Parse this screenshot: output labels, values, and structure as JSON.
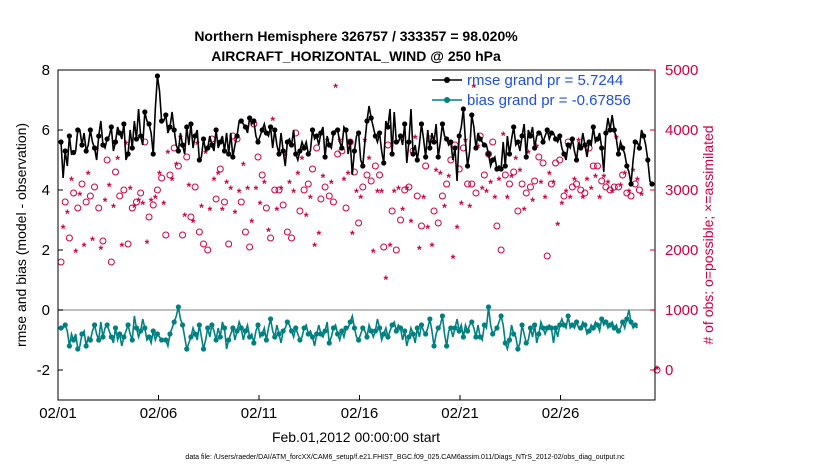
{
  "chart_data": {
    "type": "line",
    "title": "Northern Hemisphere 326757 / 333357 = 98.020%",
    "subtitle": "AIRCRAFT_HORIZONTAL_WIND @ 250 hPa",
    "xlabel": "Feb.01,2012 00:00:00 start",
    "ylabel_left": "rmse and bias (model - observation)",
    "ylabel_right": "# of obs: o=possible; ×=assimilated",
    "footer": "data file: /Users/raeder/DAI/ATM_forcXX/CAM6_setup/f.e21.FHIST_BGC.f09_025.CAM6assim.011/Diags_NTrS_2012-02/obs_diag_output.nc",
    "x_unit": "days since 02/01",
    "xlim": [
      0,
      29.7
    ],
    "x_ticks": [
      0,
      5,
      10,
      15,
      20,
      25
    ],
    "x_ticklabels": [
      "02/01",
      "02/06",
      "02/11",
      "02/16",
      "02/21",
      "02/26"
    ],
    "ylim_left": [
      -3,
      8
    ],
    "yticks_left": [
      -2,
      0,
      2,
      4,
      6,
      8
    ],
    "yticklabels_left": [
      "-2",
      "0",
      "2",
      "4",
      "6",
      "8"
    ],
    "ylim_right": [
      -500,
      5000
    ],
    "yticks_right": [
      0,
      1000,
      2000,
      3000,
      4000,
      5000
    ],
    "yticklabels_right": [
      "0",
      "1000",
      "2000",
      "3000",
      "4000",
      "5000"
    ],
    "legend_position": "top-right",
    "grid": false,
    "series": [
      {
        "name": "rmse grand pr = 5.7244",
        "axis": "left",
        "color": "#000000",
        "marker": "filled-circle",
        "values": [
          5.6,
          4.4,
          5.3,
          4.8,
          5.8,
          5.2,
          5.25,
          5.3,
          6.0,
          6.0,
          5.5,
          5.9,
          5.3,
          5.5,
          6.0,
          5.6,
          5.4,
          5.0,
          5.8,
          6.3,
          5.5,
          5.4,
          5.7,
          5.8,
          6.1,
          5.3,
          5.6,
          6.1,
          5.9,
          5.7,
          6.2,
          5.0,
          5.2,
          6.0,
          5.4,
          6.3,
          5.7,
          6.7,
          5.8,
          5.5,
          6.6,
          6.3,
          6.2,
          5.9,
          5.2,
          6.7,
          7.8,
          7.3,
          6.3,
          6.3,
          6.5,
          5.9,
          6.1,
          6.6,
          6.0,
          5.5,
          5.3,
          5.9,
          5.5,
          5.2,
          6.1,
          5.5,
          6.2,
          5.4,
          5.8,
          6.0,
          5.0,
          5.1,
          5.7,
          5.3,
          5.4,
          5.8,
          5.5,
          5.3,
          6.0,
          5.4,
          5.6,
          5.8,
          5.3,
          5.9,
          5.2,
          5.9,
          5.1,
          5.5,
          5.8,
          6.3,
          6.3,
          6.2,
          6.1,
          5.9,
          6.4,
          6.2,
          6.3,
          5.8,
          5.6,
          5.8,
          6.0,
          6.2,
          5.9,
          5.8,
          6.1,
          5.4,
          6.0,
          5.5,
          5.2,
          5.9,
          5.3,
          4.8,
          5.6,
          5.7,
          5.5,
          6.0,
          5.2,
          5.0,
          5.3,
          5.6,
          5.4,
          5.6,
          5.2,
          5.3,
          6.0,
          5.7,
          5.8,
          5.5,
          5.9,
          6.1,
          5.1,
          5.8,
          5.5,
          5.4,
          5.9,
          6.0,
          6.0,
          5.6,
          5.4,
          6.1,
          6.0,
          5.2,
          5.6,
          4.5,
          5.3,
          5.8,
          5.9,
          5.0,
          4.8,
          5.6,
          6.3,
          6.8,
          6.4,
          6.1,
          5.8,
          5.6,
          5.9,
          5.3,
          4.9,
          6.3,
          6.1,
          6.7,
          5.2,
          6.6,
          5.6,
          5.6,
          5.8,
          5.5,
          6.2,
          4.9,
          5.6,
          6.7,
          5.2,
          5.5,
          5.0,
          5.5,
          6.2,
          5.7,
          5.1,
          6.0,
          5.4,
          5.9,
          5.6,
          6.2,
          5.1,
          5.6,
          6.2,
          5.8,
          5.7,
          5.5,
          5.6,
          5.0,
          5.4,
          4.3,
          5.8,
          6.1,
          6.7,
          5.6,
          4.8,
          5.3,
          6.5,
          6.1,
          5.4,
          5.9,
          5.7,
          5.6,
          5.5,
          5.5,
          5.2,
          4.8,
          5.0,
          5.1,
          4.7,
          4.8,
          4.7,
          5.6,
          4.8,
          5.8,
          5.2,
          5.7,
          6.1,
          5.5,
          5.6,
          5.3,
          5.8,
          6.2,
          5.1,
          6.0,
          5.8,
          6.1,
          5.4,
          5.8,
          5.9,
          5.9,
          5.6,
          5.8,
          6.0,
          5.7,
          5.9,
          5.9,
          5.7,
          5.6,
          5.8,
          5.4,
          5.2,
          5.0,
          5.5,
          5.4,
          5.7,
          5.3,
          5.0,
          5.6,
          5.4,
          5.9,
          5.5,
          5.1,
          5.6,
          5.5,
          6.1,
          5.6,
          5.7,
          5.9,
          5.4,
          4.6,
          5.9,
          6.4,
          6.0,
          6.5,
          6.0,
          5.7,
          5.2,
          5.6,
          5.4,
          5.2,
          4.8,
          4.6,
          4.2,
          5.0,
          5.6,
          5.6,
          5.4,
          6.0,
          5.8,
          5.5,
          5.0,
          4.3,
          4.2
        ]
      },
      {
        "name": "bias grand pr = -0.67856",
        "axis": "left",
        "color": "#008080",
        "marker": "filled-circle",
        "values": [
          -0.6,
          -0.6,
          -0.5,
          -0.7,
          -1.2,
          -0.8,
          -1.0,
          -0.8,
          -1.3,
          -1.2,
          -0.8,
          -0.7,
          -1.2,
          -0.9,
          -1.0,
          -0.7,
          -0.5,
          -0.8,
          -1.0,
          -0.4,
          -0.9,
          -0.6,
          -0.5,
          -0.7,
          -0.9,
          -1.1,
          -0.6,
          -1.0,
          -0.8,
          -1.2,
          -0.9,
          -0.7,
          -0.5,
          -0.8,
          -1.0,
          -0.2,
          -0.6,
          -0.9,
          -0.7,
          -0.3,
          -0.6,
          -1.0,
          -0.9,
          -1.1,
          -0.7,
          -1.0,
          -0.8,
          -0.9,
          -1.0,
          -1.0,
          -1.0,
          -1.2,
          -0.8,
          -0.6,
          -0.4,
          -0.2,
          0.1,
          -0.3,
          -0.5,
          -0.9,
          -1.3,
          -1.1,
          -0.9,
          -0.6,
          -0.8,
          -1.0,
          -0.5,
          -0.9,
          -1.3,
          -1.0,
          -0.6,
          -0.9,
          -0.5,
          -0.7,
          -1.0,
          -0.6,
          -0.9,
          -0.4,
          -0.6,
          -1.3,
          -1.0,
          -0.8,
          -0.6,
          -1.0,
          -0.7,
          -0.4,
          -0.6,
          -1.0,
          -0.7,
          -0.5,
          -0.9,
          -0.8,
          -1.1,
          -0.7,
          -0.5,
          -0.9,
          -0.8,
          -0.6,
          -1.0,
          -0.6,
          -0.3,
          -0.7,
          -0.9,
          -0.5,
          -0.8,
          -1.1,
          -0.7,
          -0.6,
          -0.4,
          -0.5,
          -0.7,
          -0.9,
          -0.6,
          -0.8,
          -1.0,
          -0.9,
          -0.6,
          -0.5,
          -0.8,
          -0.7,
          -0.9,
          -1.2,
          -0.8,
          -0.5,
          -0.8,
          -0.9,
          -0.7,
          -0.4,
          -1.1,
          -0.9,
          -0.6,
          -0.5,
          -0.8,
          -1.0,
          -0.7,
          -0.9,
          -0.6,
          -0.6,
          -0.4,
          -0.2,
          -0.6,
          -0.9,
          -1.0,
          -0.8,
          -0.6,
          -0.7,
          -0.9,
          -0.5,
          -0.7,
          -0.9,
          -0.7,
          -0.3,
          -0.6,
          -1.0,
          -0.8,
          -0.6,
          -0.9,
          -0.7,
          -0.5,
          -0.4,
          -0.7,
          -0.5,
          -0.6,
          -1.0,
          -0.7,
          -1.2,
          -0.9,
          -0.6,
          -0.8,
          -1.1,
          -0.6,
          -0.9,
          -0.5,
          -0.7,
          -0.8,
          -0.6,
          -0.3,
          -0.7,
          -1.2,
          -0.8,
          -0.6,
          -0.5,
          -0.2,
          -0.8,
          -1.2,
          -0.7,
          -0.6,
          -0.9,
          -0.6,
          -0.3,
          -0.7,
          -0.5,
          -0.9,
          -0.5,
          -0.7,
          -0.5,
          -0.4,
          -0.6,
          -0.9,
          -0.5,
          -0.9,
          -1.0,
          -0.5,
          -0.6,
          0.1,
          -0.5,
          -0.8,
          -0.7,
          -0.6,
          -0.4,
          -0.2,
          -0.5,
          -1.1,
          -1.3,
          -1.0,
          -0.5,
          -0.8,
          -0.9,
          -1.3,
          -1.1,
          -0.5,
          -0.8,
          -1.1,
          -1.0,
          -0.6,
          -0.9,
          -0.5,
          -1.1,
          -0.8,
          -0.4,
          -0.6,
          -0.8,
          -0.6,
          -0.5,
          -0.6,
          -1.1,
          -0.6,
          -0.9,
          -0.5,
          -0.3,
          -0.5,
          -0.6,
          -0.2,
          -0.6,
          -0.5,
          -0.6,
          -0.4,
          -0.6,
          -0.6,
          -0.4,
          -0.5,
          -0.8,
          -0.7,
          -0.5,
          -0.6,
          -0.4,
          -0.5,
          -0.7,
          -0.3,
          -0.5,
          -0.4,
          -0.6,
          -0.5,
          -0.4,
          -0.6,
          -0.5,
          -0.7,
          -0.6,
          -0.4,
          -0.6,
          -0.3,
          0.0,
          -0.4,
          -0.6,
          -0.5,
          -0.6
        ]
      },
      {
        "name": "possible",
        "axis": "right",
        "color": "#cc0044",
        "marker": "open-circle",
        "values": [
          1800,
          2400,
          2800,
          2650,
          2200,
          3200,
          2950,
          2000,
          2700,
          2950,
          3100,
          2100,
          2800,
          3300,
          2900,
          2200,
          3050,
          3700,
          2700,
          2050,
          2150,
          2850,
          3500,
          3100,
          1800,
          2750,
          3300,
          3550,
          2900,
          2100,
          3000,
          3800,
          2100,
          3050,
          2700,
          2750,
          2800,
          2850,
          2950,
          2800,
          3800,
          2150,
          2550,
          2850,
          2750,
          2900,
          3000,
          3300,
          3200,
          2800,
          2250,
          3650,
          3250,
          3200,
          3700,
          3450,
          3400,
          3900,
          2250,
          2600,
          3550,
          3100,
          2550,
          2500,
          3050,
          3800,
          2300,
          2750,
          2100,
          3650,
          2000,
          2700,
          3850,
          3200,
          2850,
          3300,
          3350,
          2700,
          2800,
          3150,
          2100,
          3050,
          3900,
          2650,
          3850,
          3000,
          2800,
          3450,
          2300,
          3050,
          2050,
          2500,
          4100,
          3050,
          3550,
          2800,
          3250,
          3150,
          2700,
          2350,
          2200,
          4200,
          3000,
          2700,
          3000,
          3050,
          2750,
          3600,
          2300,
          3150,
          2200,
          3000,
          3950,
          3300,
          2650,
          3550,
          3000,
          2600,
          3100,
          2900,
          3350,
          2100,
          3700,
          2300,
          2850,
          3250,
          3050,
          3850,
          2900,
          3150,
          2800,
          4750,
          3600,
          3850,
          3650,
          3200,
          2700,
          3300,
          3800,
          2300,
          3300,
          3000,
          2450,
          2900,
          3050,
          3850,
          3250,
          3550,
          3150,
          2000,
          3400,
          3000,
          3250,
          3000,
          2050,
          1550,
          3750,
          2100,
          2650,
          3000,
          2000,
          3050,
          2500,
          2700,
          3000,
          3050,
          3050,
          2500,
          3650,
          3900,
          2900,
          2050,
          2400,
          2900,
          3400,
          2400,
          3850,
          2100,
          2650,
          3350,
          2450,
          3300,
          2900,
          2750,
          3100,
          3250,
          3500,
          1900,
          3750,
          2400,
          3350,
          2800,
          3700,
          3850,
          3100,
          2750,
          3100,
          4800,
          2950,
          3750,
          3900,
          3050,
          3250,
          3000,
          3600,
          3150,
          3800,
          2900,
          2400,
          3200,
          2000,
          3950,
          3250,
          2900,
          3100,
          3250,
          3300,
          3550,
          2650,
          3350,
          3100,
          2700,
          2950,
          3650,
          3050,
          2850,
          3150,
          3750,
          3550,
          3150,
          3450,
          2900,
          1900,
          3300,
          3100,
          3150,
          3450,
          2450,
          3500,
          2800,
          2900,
          3000,
          3800,
          2900,
          3050,
          3200,
          3100,
          3850,
          3000,
          2900,
          2950,
          3200,
          3700,
          3050,
          3400,
          3250,
          3400,
          2900,
          3150,
          3250,
          3050,
          3150,
          3000,
          3000,
          3050,
          3900,
          3050,
          3100,
          3250,
          3300,
          2950,
          3000,
          2900,
          3350,
          3100,
          3200,
          3000,
          2950
        ]
      },
      {
        "name": "assimilated",
        "axis": "right",
        "color": "#cc0044",
        "marker": "asterisk",
        "values": [
          1750,
          2350,
          2750,
          2600,
          2150,
          3150,
          2900,
          1950,
          2650,
          2900,
          3050,
          2050,
          2750,
          3250,
          2850,
          2150,
          3000,
          3650,
          2650,
          2000,
          2100,
          2800,
          3450,
          3050,
          1750,
          2700,
          3250,
          3500,
          2850,
          2050,
          2950,
          3750,
          2050,
          3000,
          2650,
          2700,
          2750,
          2800,
          2900,
          2750,
          3750,
          2100,
          2500,
          2800,
          2700,
          2850,
          2950,
          3250,
          3150,
          2750,
          2200,
          3600,
          3200,
          3150,
          3650,
          3400,
          3350,
          3850,
          2200,
          2550,
          3500,
          3050,
          2500,
          2450,
          3000,
          3750,
          2250,
          2700,
          2050,
          3600,
          1950,
          2650,
          3800,
          3150,
          2800,
          3250,
          3300,
          2650,
          2750,
          3100,
          2050,
          3000,
          3850,
          2600,
          3800,
          2950,
          2750,
          3400,
          2250,
          3000,
          2000,
          2450,
          4050,
          3000,
          3500,
          2750,
          3200,
          3100,
          2650,
          2300,
          2150,
          4150,
          2950,
          2650,
          2950,
          3000,
          2700,
          3550,
          2250,
          3100,
          2150,
          2950,
          3900,
          3250,
          2600,
          3500,
          2950,
          2550,
          3050,
          2850,
          3300,
          2050,
          3650,
          2250,
          2800,
          3200,
          3000,
          3800,
          2850,
          3100,
          2750,
          4700,
          3550,
          3800,
          3600,
          3150,
          2650,
          3250,
          3750,
          2250,
          3250,
          2950,
          2400,
          2850,
          3000,
          3800,
          3200,
          3500,
          3100,
          1950,
          3350,
          2950,
          3200,
          2950,
          2000,
          1500,
          3700,
          2050,
          2600,
          2950,
          1950,
          3000,
          2450,
          2650,
          2950,
          3000,
          3000,
          2450,
          3600,
          3850,
          2850,
          2000,
          2350,
          2850,
          3350,
          2350,
          3800,
          2050,
          2600,
          3300,
          2400,
          3250,
          2850,
          2700,
          3050,
          3200,
          3450,
          1850,
          3700,
          2350,
          3300,
          2750,
          3650,
          3800,
          3050,
          2700,
          3050,
          4700,
          2900,
          3700,
          3850,
          3000,
          3200,
          2950,
          3550,
          3100,
          3750,
          2850,
          2350,
          3150,
          1950,
          3900,
          3200,
          2850,
          3050,
          3200,
          3250,
          3500,
          2600,
          3300,
          3050,
          2650,
          2900,
          3600,
          3000,
          2800,
          3100,
          3700,
          3500,
          3100,
          3400,
          2850,
          1850,
          3250,
          3050,
          3100,
          3400,
          2400,
          3450,
          2750,
          2850,
          2950,
          3750,
          2850,
          3000,
          3150,
          3050,
          3800,
          2950,
          2850,
          2900,
          3150,
          3650,
          3000,
          3350,
          3200,
          3350,
          2850,
          3100,
          3200,
          3000,
          3100,
          2950,
          2950,
          3000,
          3850,
          3000,
          3050,
          3200,
          3250,
          2900,
          2950,
          2850,
          3300,
          3050,
          3150,
          2950,
          2900
        ]
      }
    ],
    "right_axis_outlier": {
      "label": "0-count markers at axis edge",
      "y": 0
    }
  }
}
